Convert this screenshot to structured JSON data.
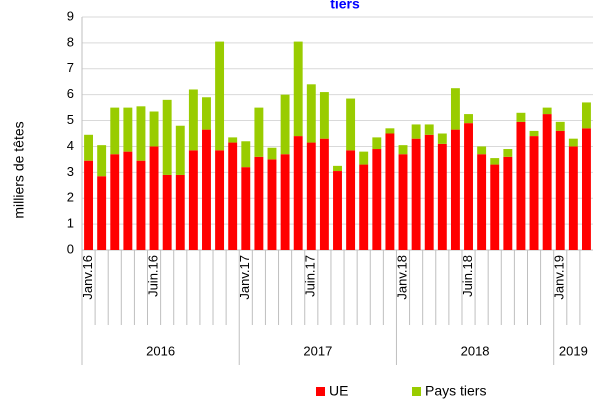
{
  "chart_data": {
    "type": "stacked_bar",
    "title": "tiers",
    "y_label": "milliers de têtes",
    "categories": [
      "Janv.16",
      null,
      null,
      null,
      null,
      "Juin.16",
      null,
      null,
      null,
      null,
      null,
      null,
      "Janv.17",
      null,
      null,
      null,
      null,
      "Juin.17",
      null,
      null,
      null,
      null,
      null,
      null,
      "Janv.18",
      null,
      null,
      null,
      null,
      "Juin.18",
      null,
      null,
      null,
      null,
      null,
      null,
      "Janv.19",
      null,
      null
    ],
    "year_groups": [
      {
        "label": "2016",
        "count": 12
      },
      {
        "label": "2017",
        "count": 12
      },
      {
        "label": "2018",
        "count": 12
      },
      {
        "label": "2019",
        "count": 3
      }
    ],
    "series": [
      {
        "name": "UE",
        "color": "#ff0000",
        "values": [
          3.45,
          2.85,
          3.7,
          3.8,
          3.45,
          4.0,
          2.9,
          2.9,
          3.85,
          4.65,
          3.85,
          4.15,
          3.2,
          3.6,
          3.5,
          3.7,
          4.4,
          4.15,
          4.3,
          3.05,
          3.85,
          3.3,
          3.9,
          4.5,
          3.7,
          4.3,
          4.45,
          4.1,
          4.65,
          4.9,
          3.7,
          3.3,
          3.6,
          4.95,
          4.4,
          5.25,
          4.6,
          4.0,
          4.7
        ]
      },
      {
        "name": "Pays tiers",
        "color": "#99cc00",
        "values": [
          1.0,
          1.2,
          1.8,
          1.7,
          2.1,
          1.35,
          2.9,
          1.9,
          2.35,
          1.25,
          4.2,
          0.2,
          1.0,
          1.9,
          0.45,
          2.3,
          3.65,
          2.25,
          1.8,
          0.2,
          2.0,
          0.5,
          0.45,
          0.2,
          0.35,
          0.55,
          0.4,
          0.4,
          1.6,
          0.35,
          0.3,
          0.25,
          0.3,
          0.35,
          0.2,
          0.25,
          0.35,
          0.3,
          1.0
        ]
      }
    ],
    "ylim": [
      0,
      9
    ],
    "yticks": [
      0,
      1,
      2,
      3,
      4,
      5,
      6,
      7,
      8,
      9
    ],
    "grid": true,
    "legend": "bottom"
  }
}
